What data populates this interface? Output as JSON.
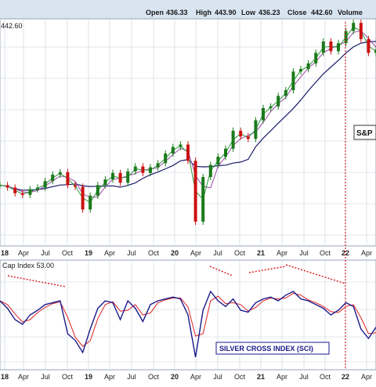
{
  "header": {
    "open_label": "Open",
    "open_value": "436.33",
    "high_label": "High",
    "high_value": "443.90",
    "low_label": "Low",
    "low_value": "436.23",
    "close_label": "Close",
    "close_value": "442.60",
    "volume_label": "Volume"
  },
  "price_panel": {
    "last_value_label": "442.60",
    "annotation": "S&P"
  },
  "indicator_panel": {
    "label": "Cap Index 53.00",
    "box_label": "SILVER CROSS INDEX (SCI)"
  },
  "x_axis_ticks": [
    "18",
    "Apr",
    "Jul",
    "Oct",
    "19",
    "Apr",
    "Jul",
    "Oct",
    "20",
    "Apr",
    "Jul",
    "Oct",
    "21",
    "Apr",
    "Jul",
    "Oct",
    "22",
    "Apr"
  ],
  "colors": {
    "up_candle": "#1a7a1a",
    "down_candle": "#cc1111",
    "ma_fast": "#2a9a3a",
    "ma_mid": "#9a4aa8",
    "ma_slow": "#1a1a6a",
    "sci_line": "#1a1a8a",
    "sci_signal": "#dd2222",
    "annotation_dotted": "#dd2222",
    "grid": "#c8d0dc",
    "header_bg": "#d8e4f0"
  },
  "chart_data": [
    {
      "type": "line",
      "title": "",
      "note": "price chart with candles and moving averages; values approximate",
      "x": [
        "2018-01",
        "2018-02",
        "2018-03",
        "2018-04",
        "2018-05",
        "2018-06",
        "2018-07",
        "2018-08",
        "2018-09",
        "2018-10",
        "2018-11",
        "2018-12",
        "2019-01",
        "2019-02",
        "2019-03",
        "2019-04",
        "2019-05",
        "2019-06",
        "2019-07",
        "2019-08",
        "2019-09",
        "2019-10",
        "2019-11",
        "2019-12",
        "2020-01",
        "2020-02",
        "2020-03",
        "2020-04",
        "2020-05",
        "2020-06",
        "2020-07",
        "2020-08",
        "2020-09",
        "2020-10",
        "2020-11",
        "2020-12",
        "2021-01",
        "2021-02",
        "2021-03",
        "2021-04",
        "2021-05",
        "2021-06",
        "2021-07",
        "2021-08",
        "2021-09",
        "2021-10",
        "2021-11",
        "2021-12",
        "2022-01",
        "2022-02",
        "2022-03"
      ],
      "series": [
        {
          "name": "",
          "values": [
            275,
            272,
            265,
            263,
            270,
            272,
            280,
            288,
            291,
            275,
            273,
            245,
            262,
            275,
            282,
            290,
            278,
            292,
            298,
            290,
            297,
            302,
            314,
            322,
            325,
            305,
            230,
            285,
            300,
            310,
            320,
            342,
            335,
            332,
            355,
            370,
            372,
            385,
            392,
            415,
            418,
            425,
            438,
            452,
            440,
            450,
            465,
            475,
            455,
            438,
            442
          ]
        }
      ],
      "ylim": [
        200,
        480
      ]
    },
    {
      "type": "line",
      "title": "",
      "series": [
        {
          "name": "",
          "values": [
            70,
            62,
            50,
            45,
            55,
            60,
            66,
            68,
            70,
            35,
            28,
            15,
            40,
            62,
            70,
            68,
            50,
            70,
            62,
            48,
            66,
            70,
            72,
            74,
            72,
            55,
            10,
            60,
            80,
            70,
            64,
            72,
            60,
            58,
            68,
            72,
            74,
            70,
            76,
            80,
            72,
            70,
            66,
            62,
            55,
            60,
            68,
            64,
            40,
            30,
            42
          ]
        }
      ],
      "ylim": [
        0,
        100
      ]
    }
  ]
}
